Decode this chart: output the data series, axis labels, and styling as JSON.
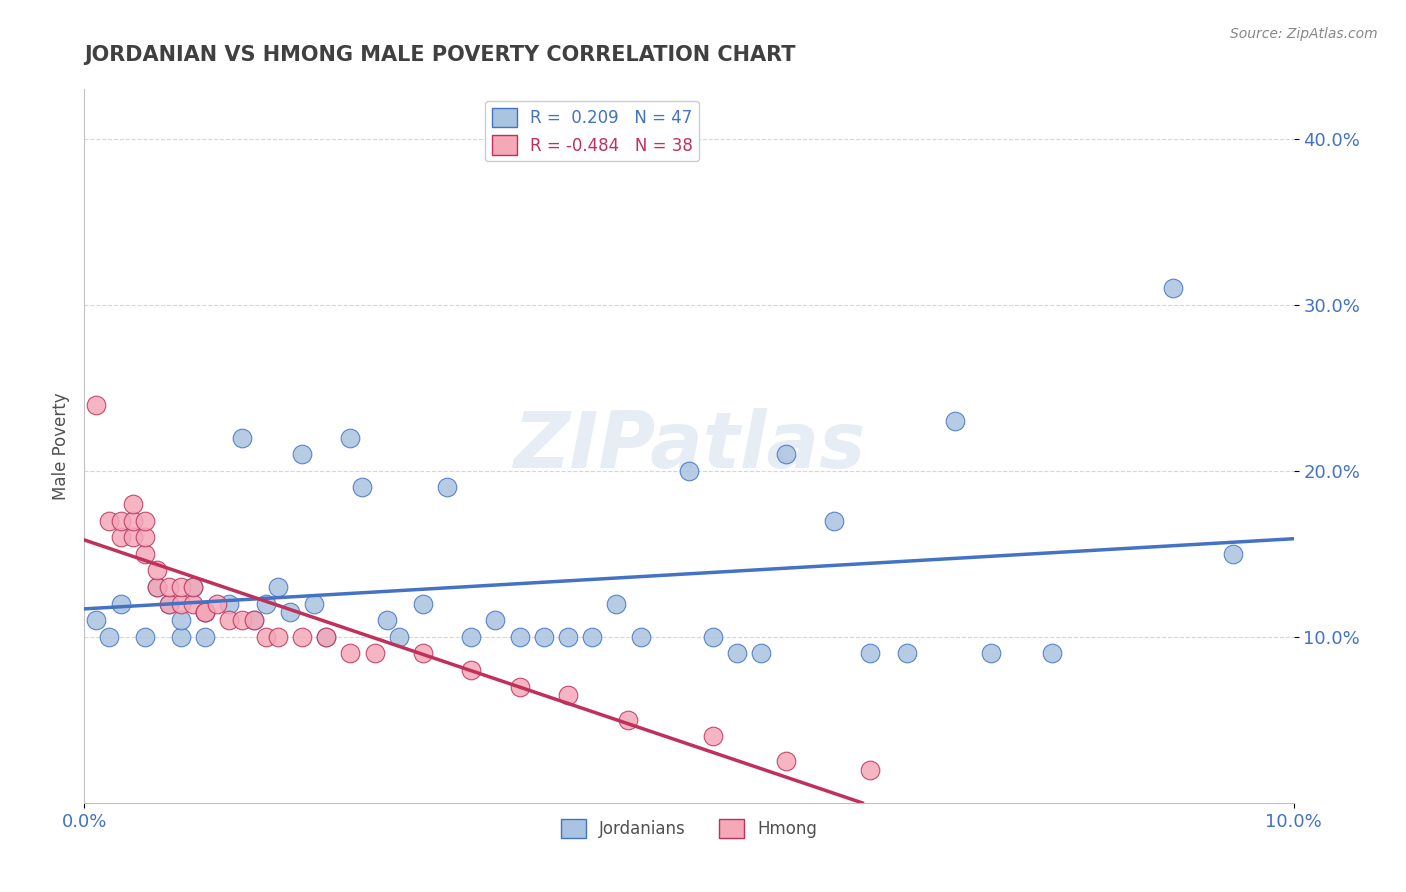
{
  "title": "JORDANIAN VS HMONG MALE POVERTY CORRELATION CHART",
  "source": "Source: ZipAtlas.com",
  "ylabel": "Male Poverty",
  "xlim": [
    0.0,
    0.1
  ],
  "ylim": [
    0.0,
    0.43
  ],
  "yticks": [
    0.1,
    0.2,
    0.3,
    0.4
  ],
  "ytick_labels": [
    "10.0%",
    "20.0%",
    "30.0%",
    "40.0%"
  ],
  "xticks": [
    0.0,
    0.1
  ],
  "xtick_labels": [
    "0.0%",
    "10.0%"
  ],
  "legend_r1": "R =  0.209   N = 47",
  "legend_r2": "R = -0.484   N = 38",
  "jordanian_color": "#a8c4e0",
  "hmong_color": "#f4a8b8",
  "line_jordanian_color": "#4472c4",
  "line_hmong_color": "#c0305a",
  "grid_color": "#cccccc",
  "title_color": "#404040",
  "axis_color": "#4472c4",
  "watermark": "ZIPatlas",
  "jordanians_x": [
    0.001,
    0.002,
    0.003,
    0.005,
    0.006,
    0.007,
    0.008,
    0.008,
    0.009,
    0.01,
    0.01,
    0.012,
    0.013,
    0.014,
    0.015,
    0.016,
    0.017,
    0.018,
    0.019,
    0.02,
    0.022,
    0.023,
    0.025,
    0.026,
    0.028,
    0.03,
    0.032,
    0.034,
    0.036,
    0.038,
    0.04,
    0.042,
    0.044,
    0.046,
    0.05,
    0.052,
    0.054,
    0.056,
    0.058,
    0.062,
    0.065,
    0.068,
    0.072,
    0.075,
    0.08,
    0.09,
    0.095
  ],
  "jordanians_y": [
    0.11,
    0.1,
    0.12,
    0.1,
    0.13,
    0.12,
    0.1,
    0.11,
    0.13,
    0.1,
    0.115,
    0.12,
    0.22,
    0.11,
    0.12,
    0.13,
    0.115,
    0.21,
    0.12,
    0.1,
    0.22,
    0.19,
    0.11,
    0.1,
    0.12,
    0.19,
    0.1,
    0.11,
    0.1,
    0.1,
    0.1,
    0.1,
    0.12,
    0.1,
    0.2,
    0.1,
    0.09,
    0.09,
    0.21,
    0.17,
    0.09,
    0.09,
    0.23,
    0.09,
    0.09,
    0.31,
    0.15
  ],
  "hmong_x": [
    0.001,
    0.002,
    0.003,
    0.003,
    0.004,
    0.004,
    0.004,
    0.005,
    0.005,
    0.005,
    0.006,
    0.006,
    0.007,
    0.007,
    0.008,
    0.008,
    0.009,
    0.009,
    0.01,
    0.01,
    0.011,
    0.012,
    0.013,
    0.014,
    0.015,
    0.016,
    0.018,
    0.02,
    0.022,
    0.024,
    0.028,
    0.032,
    0.036,
    0.04,
    0.045,
    0.052,
    0.058,
    0.065
  ],
  "hmong_y": [
    0.24,
    0.17,
    0.16,
    0.17,
    0.16,
    0.17,
    0.18,
    0.15,
    0.16,
    0.17,
    0.13,
    0.14,
    0.12,
    0.13,
    0.12,
    0.13,
    0.12,
    0.13,
    0.115,
    0.115,
    0.12,
    0.11,
    0.11,
    0.11,
    0.1,
    0.1,
    0.1,
    0.1,
    0.09,
    0.09,
    0.09,
    0.08,
    0.07,
    0.065,
    0.05,
    0.04,
    0.025,
    0.02
  ]
}
